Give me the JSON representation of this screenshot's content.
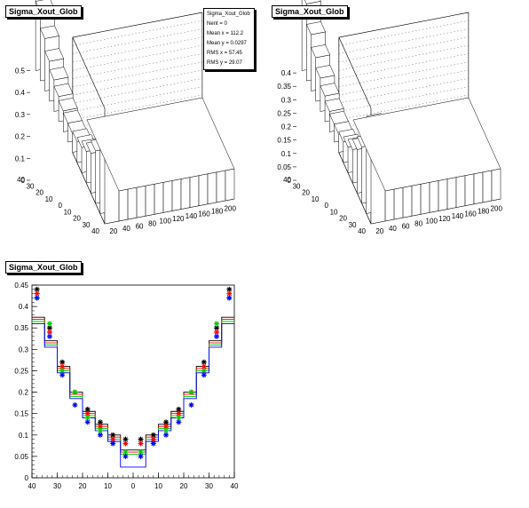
{
  "title_tl": "Sigma_Xout_Glob",
  "title_tr": "Sigma_Xout_Glob",
  "title_bottom": "Sigma_Xout_Glob",
  "stats": {
    "lines": [
      "Sigma_Xout_Glob",
      "Nent = 0",
      "Mean x = 112.2",
      "Mean y = 0.0297",
      "RMS x = 57.45",
      "RMS y = 29.07"
    ]
  },
  "chart_data": [
    {
      "type": "lego3d",
      "title": "Sigma_Xout_Glob",
      "x_ticks": [
        "20",
        "40",
        "60",
        "80",
        "100",
        "120",
        "140",
        "160",
        "180",
        "200"
      ],
      "y_ticks": [
        "40",
        "30",
        "20",
        "10",
        "0",
        "10",
        "20",
        "30",
        "40"
      ],
      "z_ticks": [
        "0",
        "0.1",
        "0.2",
        "0.3",
        "0.4",
        "0.5"
      ],
      "zlim": [
        0,
        0.55
      ],
      "profile": [
        0.42,
        0.33,
        0.25,
        0.19,
        0.15,
        0.12,
        0.1,
        0.09,
        0.09,
        0.1,
        0.12,
        0.15,
        0.19,
        0.25,
        0.33,
        0.42
      ]
    },
    {
      "type": "lego3d",
      "title": "Sigma_Xout_Glob",
      "x_ticks": [
        "20",
        "40",
        "60",
        "80",
        "100",
        "120",
        "140",
        "160",
        "180",
        "200"
      ],
      "y_ticks": [
        "40",
        "30",
        "20",
        "10",
        "0",
        "10",
        "20",
        "30",
        "40"
      ],
      "z_ticks": [
        "0",
        "0.05",
        "0.1",
        "0.15",
        "0.2",
        "0.25",
        "0.3",
        "0.35",
        "0.4"
      ],
      "zlim": [
        0,
        0.45
      ],
      "profile": [
        0.38,
        0.3,
        0.22,
        0.17,
        0.13,
        0.1,
        0.08,
        0.07,
        0.07,
        0.08,
        0.1,
        0.13,
        0.17,
        0.22,
        0.3,
        0.38
      ]
    },
    {
      "type": "scatter",
      "title": "Sigma_Xout_Glob",
      "x_ticks": [
        "40",
        "30",
        "20",
        "10",
        "0",
        "10",
        "20",
        "30",
        "40"
      ],
      "y_ticks": [
        "0",
        "0.05",
        "0.1",
        "0.15",
        "0.2",
        "0.25",
        "0.3",
        "0.35",
        "0.4",
        "0.45"
      ],
      "ylim": [
        0,
        0.45
      ],
      "x": [
        -38,
        -33,
        -28,
        -23,
        -18,
        -13,
        -8,
        -3,
        3,
        8,
        13,
        18,
        23,
        28,
        33,
        38
      ],
      "series": [
        {
          "color": "#000000",
          "values": [
            0.44,
            0.35,
            0.27,
            0.2,
            0.16,
            0.13,
            0.1,
            0.09,
            0.09,
            0.1,
            0.13,
            0.16,
            0.2,
            0.27,
            0.35,
            0.44
          ]
        },
        {
          "color": "#ff0000",
          "values": [
            0.43,
            0.34,
            0.26,
            0.2,
            0.15,
            0.12,
            0.09,
            0.08,
            0.08,
            0.09,
            0.12,
            0.15,
            0.2,
            0.26,
            0.34,
            0.43
          ]
        },
        {
          "color": "#00cc00",
          "values": [
            0.42,
            0.36,
            0.25,
            0.2,
            0.14,
            0.11,
            0.08,
            0.06,
            0.06,
            0.08,
            0.11,
            0.14,
            0.2,
            0.25,
            0.36,
            0.42
          ]
        },
        {
          "color": "#0000ff",
          "values": [
            0.42,
            0.33,
            0.24,
            0.17,
            0.13,
            0.1,
            0.08,
            0.05,
            0.05,
            0.08,
            0.1,
            0.13,
            0.17,
            0.24,
            0.33,
            0.42
          ]
        }
      ],
      "histograms": [
        {
          "color": "#000000",
          "values": [
            0.375,
            0.32,
            0.26,
            0.2,
            0.155,
            0.125,
            0.1,
            0.065,
            0.065,
            0.1,
            0.125,
            0.155,
            0.2,
            0.26,
            0.32,
            0.375
          ]
        },
        {
          "color": "#ff0000",
          "values": [
            0.37,
            0.315,
            0.255,
            0.195,
            0.15,
            0.12,
            0.095,
            0.06,
            0.06,
            0.095,
            0.12,
            0.15,
            0.195,
            0.255,
            0.315,
            0.37
          ]
        },
        {
          "color": "#00cc00",
          "values": [
            0.365,
            0.31,
            0.25,
            0.19,
            0.145,
            0.115,
            0.09,
            0.055,
            0.055,
            0.09,
            0.115,
            0.145,
            0.19,
            0.25,
            0.31,
            0.365
          ]
        },
        {
          "color": "#0000ff",
          "values": [
            0.36,
            0.305,
            0.245,
            0.185,
            0.14,
            0.11,
            0.085,
            0.025,
            0.025,
            0.085,
            0.11,
            0.14,
            0.185,
            0.245,
            0.305,
            0.36
          ]
        }
      ]
    }
  ]
}
